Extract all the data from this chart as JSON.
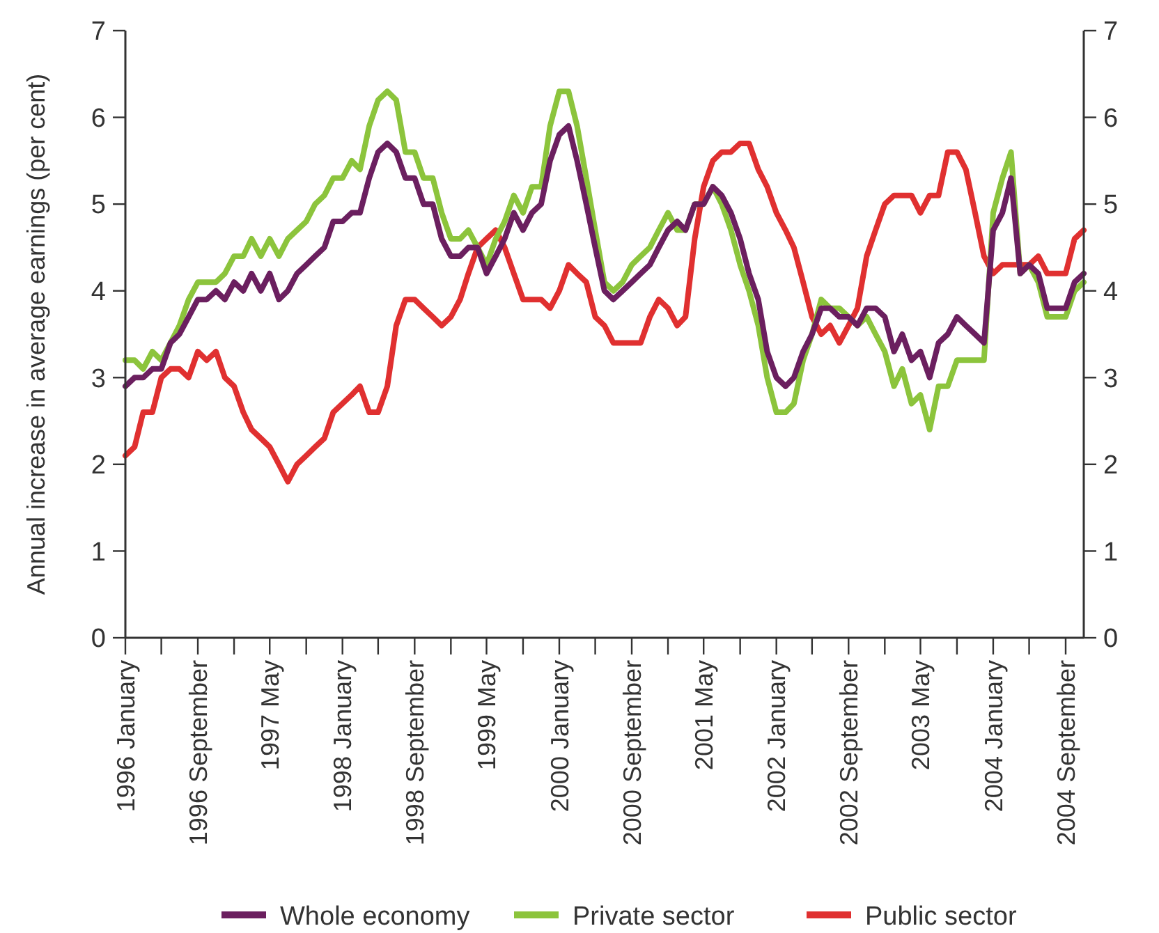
{
  "chart_data": {
    "type": "line",
    "ylabel": "Annual increase in average earnings (per cent)",
    "legend": "bottom",
    "line_style": "solid",
    "marker": "none",
    "grid": false,
    "x": [
      "1996-01",
      "1996-02",
      "1996-03",
      "1996-04",
      "1996-05",
      "1996-06",
      "1996-07",
      "1996-08",
      "1996-09",
      "1996-10",
      "1996-11",
      "1996-12",
      "1997-01",
      "1997-02",
      "1997-03",
      "1997-04",
      "1997-05",
      "1997-06",
      "1997-07",
      "1997-08",
      "1997-09",
      "1997-10",
      "1997-11",
      "1997-12",
      "1998-01",
      "1998-02",
      "1998-03",
      "1998-04",
      "1998-05",
      "1998-06",
      "1998-07",
      "1998-08",
      "1998-09",
      "1998-10",
      "1998-11",
      "1998-12",
      "1999-01",
      "1999-02",
      "1999-03",
      "1999-04",
      "1999-05",
      "1999-06",
      "1999-07",
      "1999-08",
      "1999-09",
      "1999-10",
      "1999-11",
      "1999-12",
      "2000-01",
      "2000-02",
      "2000-03",
      "2000-04",
      "2000-05",
      "2000-06",
      "2000-07",
      "2000-08",
      "2000-09",
      "2000-10",
      "2000-11",
      "2000-12",
      "2001-01",
      "2001-02",
      "2001-03",
      "2001-04",
      "2001-05",
      "2001-06",
      "2001-07",
      "2001-08",
      "2001-09",
      "2001-10",
      "2001-11",
      "2001-12",
      "2002-01",
      "2002-02",
      "2002-03",
      "2002-04",
      "2002-05",
      "2002-06",
      "2002-07",
      "2002-08",
      "2002-09",
      "2002-10",
      "2002-11",
      "2002-12",
      "2003-01",
      "2003-02",
      "2003-03",
      "2003-04",
      "2003-05",
      "2003-06",
      "2003-07",
      "2003-08",
      "2003-09",
      "2003-10",
      "2003-11",
      "2003-12",
      "2004-01",
      "2004-02",
      "2004-03",
      "2004-04",
      "2004-05",
      "2004-06",
      "2004-07",
      "2004-08",
      "2004-09",
      "2004-10",
      "2004-11"
    ],
    "xlim": [
      "1996-01",
      "2004-11"
    ],
    "xticks": [
      {
        "value": "1996-01",
        "label": "1996 January"
      },
      {
        "value": "1996-05",
        "label": null
      },
      {
        "value": "1996-09",
        "label": "1996 September"
      },
      {
        "value": "1997-01",
        "label": null
      },
      {
        "value": "1997-05",
        "label": "1997 May"
      },
      {
        "value": "1997-09",
        "label": null
      },
      {
        "value": "1998-01",
        "label": "1998 January"
      },
      {
        "value": "1998-05",
        "label": null
      },
      {
        "value": "1998-09",
        "label": "1998 September"
      },
      {
        "value": "1999-01",
        "label": null
      },
      {
        "value": "1999-05",
        "label": "1999 May"
      },
      {
        "value": "1999-09",
        "label": null
      },
      {
        "value": "2000-01",
        "label": "2000 January"
      },
      {
        "value": "2000-05",
        "label": null
      },
      {
        "value": "2000-09",
        "label": "2000 September"
      },
      {
        "value": "2001-01",
        "label": null
      },
      {
        "value": "2001-05",
        "label": "2001 May"
      },
      {
        "value": "2001-09",
        "label": null
      },
      {
        "value": "2002-01",
        "label": "2002 January"
      },
      {
        "value": "2002-05",
        "label": null
      },
      {
        "value": "2002-09",
        "label": "2002 September"
      },
      {
        "value": "2003-01",
        "label": null
      },
      {
        "value": "2003-05",
        "label": "2003 May"
      },
      {
        "value": "2003-09",
        "label": null
      },
      {
        "value": "2004-01",
        "label": "2004 January"
      },
      {
        "value": "2004-05",
        "label": null
      },
      {
        "value": "2004-09",
        "label": "2004 September"
      }
    ],
    "ylim": [
      0,
      7
    ],
    "yticks": [
      0,
      1,
      2,
      3,
      4,
      5,
      6,
      7
    ],
    "y2lim": [
      0,
      7
    ],
    "y2ticks": [
      0,
      1,
      2,
      3,
      4,
      5,
      6,
      7
    ],
    "series": [
      {
        "name": "Whole economy",
        "color": "#6b1f5f",
        "values": [
          2.9,
          3.0,
          3.0,
          3.1,
          3.1,
          3.4,
          3.5,
          3.7,
          3.9,
          3.9,
          4.0,
          3.9,
          4.1,
          4.0,
          4.2,
          4.0,
          4.2,
          3.9,
          4.0,
          4.2,
          4.3,
          4.4,
          4.5,
          4.8,
          4.8,
          4.9,
          4.9,
          5.3,
          5.6,
          5.7,
          5.6,
          5.3,
          5.3,
          5.0,
          5.0,
          4.6,
          4.4,
          4.4,
          4.5,
          4.5,
          4.2,
          4.4,
          4.6,
          4.9,
          4.7,
          4.9,
          5.0,
          5.5,
          5.8,
          5.9,
          5.5,
          5.0,
          4.5,
          4.0,
          3.9,
          4.0,
          4.1,
          4.2,
          4.3,
          4.5,
          4.7,
          4.8,
          4.7,
          5.0,
          5.0,
          5.2,
          5.1,
          4.9,
          4.6,
          4.2,
          3.9,
          3.3,
          3.0,
          2.9,
          3.0,
          3.3,
          3.5,
          3.8,
          3.8,
          3.7,
          3.7,
          3.6,
          3.8,
          3.8,
          3.7,
          3.3,
          3.5,
          3.2,
          3.3,
          3.0,
          3.4,
          3.5,
          3.7,
          3.6,
          3.5,
          3.4,
          4.7,
          4.9,
          5.3,
          4.2,
          4.3,
          4.2,
          3.8,
          3.8,
          3.8,
          4.1,
          4.2
        ]
      },
      {
        "name": "Private sector",
        "color": "#8cc43c",
        "values": [
          3.2,
          3.2,
          3.1,
          3.3,
          3.2,
          3.4,
          3.6,
          3.9,
          4.1,
          4.1,
          4.1,
          4.2,
          4.4,
          4.4,
          4.6,
          4.4,
          4.6,
          4.4,
          4.6,
          4.7,
          4.8,
          5.0,
          5.1,
          5.3,
          5.3,
          5.5,
          5.4,
          5.9,
          6.2,
          6.3,
          6.2,
          5.6,
          5.6,
          5.3,
          5.3,
          4.9,
          4.6,
          4.6,
          4.7,
          4.5,
          4.3,
          4.6,
          4.8,
          5.1,
          4.9,
          5.2,
          5.2,
          5.9,
          6.3,
          6.3,
          5.9,
          5.3,
          4.7,
          4.1,
          4.0,
          4.1,
          4.3,
          4.4,
          4.5,
          4.7,
          4.9,
          4.7,
          4.7,
          5.0,
          5.0,
          5.2,
          5.0,
          4.7,
          4.3,
          4.0,
          3.6,
          3.0,
          2.6,
          2.6,
          2.7,
          3.2,
          3.5,
          3.9,
          3.8,
          3.8,
          3.7,
          3.6,
          3.7,
          3.5,
          3.3,
          2.9,
          3.1,
          2.7,
          2.8,
          2.4,
          2.9,
          2.9,
          3.2,
          3.2,
          3.2,
          3.2,
          4.9,
          5.3,
          5.6,
          4.2,
          4.3,
          4.1,
          3.7,
          3.7,
          3.7,
          4.0,
          4.1
        ]
      },
      {
        "name": "Public sector",
        "color": "#e03030",
        "values": [
          2.1,
          2.2,
          2.6,
          2.6,
          3.0,
          3.1,
          3.1,
          3.0,
          3.3,
          3.2,
          3.3,
          3.0,
          2.9,
          2.6,
          2.4,
          2.3,
          2.2,
          2.0,
          1.8,
          2.0,
          2.1,
          2.2,
          2.3,
          2.6,
          2.7,
          2.8,
          2.9,
          2.6,
          2.6,
          2.9,
          3.6,
          3.9,
          3.9,
          3.8,
          3.7,
          3.6,
          3.7,
          3.9,
          4.2,
          4.5,
          4.6,
          4.7,
          4.5,
          4.2,
          3.9,
          3.9,
          3.9,
          3.8,
          4.0,
          4.3,
          4.2,
          4.1,
          3.7,
          3.6,
          3.4,
          3.4,
          3.4,
          3.4,
          3.7,
          3.9,
          3.8,
          3.6,
          3.7,
          4.6,
          5.2,
          5.5,
          5.6,
          5.6,
          5.7,
          5.7,
          5.4,
          5.2,
          4.9,
          4.7,
          4.5,
          4.1,
          3.7,
          3.5,
          3.6,
          3.4,
          3.6,
          3.8,
          4.4,
          4.7,
          5.0,
          5.1,
          5.1,
          5.1,
          4.9,
          5.1,
          5.1,
          5.6,
          5.6,
          5.4,
          4.9,
          4.4,
          4.2,
          4.3,
          4.3,
          4.3,
          4.3,
          4.4,
          4.2,
          4.2,
          4.2,
          4.6,
          4.7
        ]
      }
    ]
  }
}
